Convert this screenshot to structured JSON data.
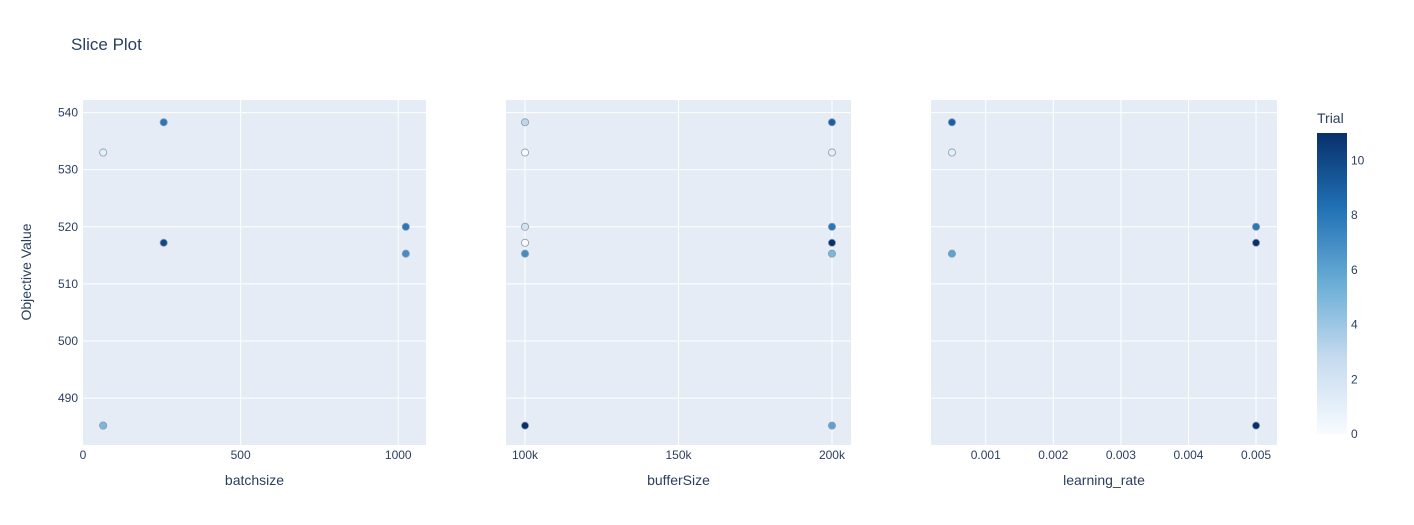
{
  "chart_data": {
    "type": "scatter",
    "title": "Slice Plot",
    "ylabel": "Objective Value",
    "y_ticks": [
      490,
      500,
      510,
      520,
      530,
      540
    ],
    "ylim": [
      481.8,
      542.2
    ],
    "colorbar": {
      "title": "Trial",
      "range": [
        0,
        11
      ],
      "ticks": [
        0,
        2,
        4,
        6,
        8,
        10
      ],
      "colorscale": [
        "#f7fbff",
        "#c6dbef",
        "#6baed6",
        "#2171b5",
        "#08306b"
      ]
    },
    "panels": [
      {
        "xlabel": "batchsize",
        "xlim": [
          0,
          1088
        ],
        "x_ticks": [
          0,
          500,
          1000
        ],
        "x_tick_labels": [
          "0",
          "500",
          "1000"
        ],
        "points": [
          {
            "x": 64,
            "y": 533.0,
            "trial": 1
          },
          {
            "x": 256,
            "y": 538.3,
            "trial": 8
          },
          {
            "x": 256,
            "y": 517.2,
            "trial": 10
          },
          {
            "x": 1024,
            "y": 520.0,
            "trial": 8
          },
          {
            "x": 1024,
            "y": 515.3,
            "trial": 7
          },
          {
            "x": 64,
            "y": 485.2,
            "trial": 11
          },
          {
            "x": 64,
            "y": 485.2,
            "trial": 5
          }
        ]
      },
      {
        "xlabel": "bufferSize",
        "xlim": [
          93800,
          206200
        ],
        "x_ticks": [
          100000,
          150000,
          200000
        ],
        "x_tick_labels": [
          "100k",
          "150k",
          "200k"
        ],
        "points": [
          {
            "x": 100000,
            "y": 538.3,
            "trial": 3
          },
          {
            "x": 100000,
            "y": 533.0,
            "trial": 0
          },
          {
            "x": 100000,
            "y": 520.0,
            "trial": 2
          },
          {
            "x": 100000,
            "y": 517.2,
            "trial": 0
          },
          {
            "x": 100000,
            "y": 515.3,
            "trial": 7
          },
          {
            "x": 100000,
            "y": 485.2,
            "trial": 11
          },
          {
            "x": 200000,
            "y": 538.3,
            "trial": 9
          },
          {
            "x": 200000,
            "y": 533.0,
            "trial": 1
          },
          {
            "x": 200000,
            "y": 520.0,
            "trial": 8
          },
          {
            "x": 200000,
            "y": 517.2,
            "trial": 11
          },
          {
            "x": 200000,
            "y": 515.3,
            "trial": 5
          },
          {
            "x": 200000,
            "y": 485.2,
            "trial": 6
          }
        ]
      },
      {
        "xlabel": "learning_rate",
        "xlim": [
          0.00019,
          0.00531
        ],
        "x_ticks": [
          0.001,
          0.002,
          0.003,
          0.004,
          0.005
        ],
        "x_tick_labels": [
          "0.001",
          "0.002",
          "0.003",
          "0.004",
          "0.005"
        ],
        "points": [
          {
            "x": 0.0005,
            "y": 538.3,
            "trial": 9
          },
          {
            "x": 0.0005,
            "y": 533.0,
            "trial": 1
          },
          {
            "x": 0.0005,
            "y": 515.3,
            "trial": 6
          },
          {
            "x": 0.005,
            "y": 520.0,
            "trial": 8
          },
          {
            "x": 0.005,
            "y": 517.2,
            "trial": 11
          },
          {
            "x": 0.005,
            "y": 485.2,
            "trial": 11
          }
        ]
      }
    ]
  }
}
